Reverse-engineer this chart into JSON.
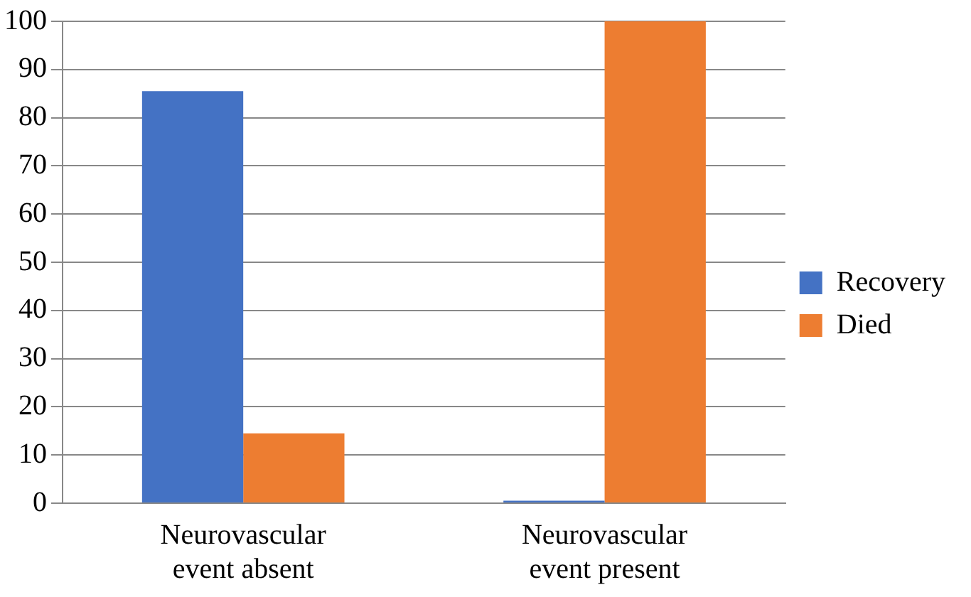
{
  "chart_data": {
    "type": "bar",
    "categories": [
      "Neurovascular event absent",
      "Neurovascular event present"
    ],
    "series": [
      {
        "name": "Recovery",
        "color": "#4472c4",
        "values": [
          85.5,
          0.5
        ]
      },
      {
        "name": "Died",
        "color": "#ed7d31",
        "values": [
          14.5,
          100
        ]
      }
    ],
    "ylim": [
      0,
      100
    ],
    "yticks": [
      0,
      10,
      20,
      30,
      40,
      50,
      60,
      70,
      80,
      90,
      100
    ],
    "grid": "y",
    "legend": "right"
  }
}
